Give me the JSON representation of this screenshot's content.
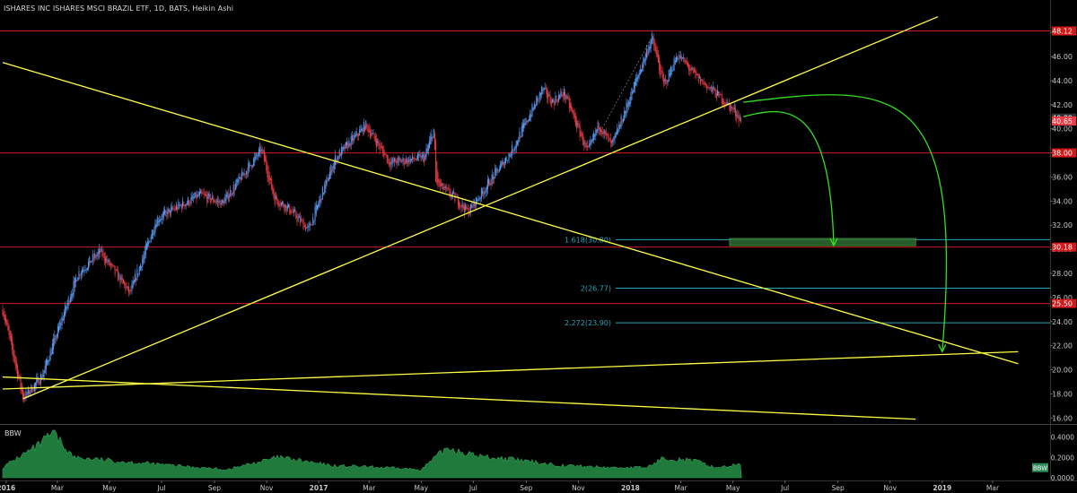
{
  "header": {
    "title": "ISHARES INC ISHARES MSCI BRAZIL ETF, 1D, BATS, Heikin Ashi"
  },
  "indicator": {
    "name": "BBW",
    "badge": "BBW"
  },
  "colors": {
    "background": "#000000",
    "candle_up": "#5b9cf6",
    "candle_down": "#ef3b44",
    "trendline": "#ffff44",
    "horizontal_level": "#d11a1a",
    "fib_line": "#2aa6b8",
    "projection_arrow": "#33dd22",
    "target_zone": "#2e6b2e",
    "bbw_fill": "#1f7a3c"
  },
  "chart_data": [
    {
      "type": "candlestick",
      "style": "Heikin Ashi",
      "x_axis": {
        "ticks": [
          "2016",
          "Mar",
          "May",
          "Jul",
          "Sep",
          "Nov",
          "2017",
          "Mar",
          "May",
          "Jul",
          "Sep",
          "Nov",
          "2018",
          "Mar",
          "May",
          "Jul",
          "Sep",
          "Nov",
          "2019",
          "Mar"
        ]
      },
      "y_axis": {
        "ticks": [
          "48.00",
          "46.00",
          "44.00",
          "42.00",
          "40.00",
          "38.00",
          "36.00",
          "34.00",
          "32.00",
          "30.00",
          "28.00",
          "26.00",
          "24.00",
          "22.00",
          "20.00",
          "18.00",
          "16.00"
        ],
        "range": [
          15.5,
          49.5
        ],
        "price_labels": [
          {
            "text": "48.12",
            "value": 48.12,
            "color": "#d11a1a"
          },
          {
            "text": "40.89",
            "value": 40.89,
            "color": "#333333"
          },
          {
            "text": "40.65",
            "value": 40.65,
            "color": "#ef3b44"
          },
          {
            "text": "38.00",
            "value": 38.0,
            "color": "#d11a1a"
          },
          {
            "text": "30.18",
            "value": 30.18,
            "color": "#d11a1a"
          },
          {
            "text": "25.50",
            "value": 25.5,
            "color": "#d11a1a"
          }
        ]
      },
      "price_path": [
        {
          "date": "2015-12-28",
          "price": 25.0
        },
        {
          "date": "2016-01-21",
          "price": 17.6
        },
        {
          "date": "2016-02-12",
          "price": 19.5
        },
        {
          "date": "2016-03-10",
          "price": 25.0
        },
        {
          "date": "2016-03-25",
          "price": 28.0
        },
        {
          "date": "2016-04-20",
          "price": 29.8
        },
        {
          "date": "2016-05-25",
          "price": 26.3
        },
        {
          "date": "2016-06-25",
          "price": 32.5
        },
        {
          "date": "2016-07-20",
          "price": 33.5
        },
        {
          "date": "2016-08-15",
          "price": 34.5
        },
        {
          "date": "2016-09-10",
          "price": 33.8
        },
        {
          "date": "2016-10-26",
          "price": 38.3
        },
        {
          "date": "2016-11-10",
          "price": 34.2
        },
        {
          "date": "2016-11-25",
          "price": 33.5
        },
        {
          "date": "2016-12-20",
          "price": 31.6
        },
        {
          "date": "2017-01-20",
          "price": 37.5
        },
        {
          "date": "2017-02-25",
          "price": 40.3
        },
        {
          "date": "2017-03-25",
          "price": 37.2
        },
        {
          "date": "2017-05-05",
          "price": 37.6
        },
        {
          "date": "2017-05-16",
          "price": 40.0
        },
        {
          "date": "2017-05-18",
          "price": 35.5
        },
        {
          "date": "2017-06-10",
          "price": 34.2
        },
        {
          "date": "2017-06-25",
          "price": 33.1
        },
        {
          "date": "2017-08-15",
          "price": 38.2
        },
        {
          "date": "2017-09-20",
          "price": 43.3
        },
        {
          "date": "2017-10-01",
          "price": 42.2
        },
        {
          "date": "2017-10-15",
          "price": 43.0
        },
        {
          "date": "2017-11-12",
          "price": 38.0
        },
        {
          "date": "2017-11-25",
          "price": 40.4
        },
        {
          "date": "2017-12-10",
          "price": 38.5
        },
        {
          "date": "2018-01-26",
          "price": 47.6
        },
        {
          "date": "2018-02-09",
          "price": 43.5
        },
        {
          "date": "2018-02-25",
          "price": 46.2
        },
        {
          "date": "2018-03-20",
          "price": 44.2
        },
        {
          "date": "2018-04-10",
          "price": 43.0
        },
        {
          "date": "2018-05-02",
          "price": 41.5
        },
        {
          "date": "2018-05-11",
          "price": 40.65
        }
      ],
      "horizontal_levels": [
        48.12,
        38.0,
        30.18,
        25.5
      ],
      "fibonacci_levels": [
        {
          "label": "1.618(30.80)",
          "value": 30.8
        },
        {
          "label": "2(26.77)",
          "value": 26.77
        },
        {
          "label": "2.272(23.90)",
          "value": 23.9
        }
      ],
      "trendlines": [
        {
          "from": {
            "date": "2015-12-28",
            "price": 45.5
          },
          "to": {
            "date": "2019-03-31",
            "price": 20.5
          }
        },
        {
          "from": {
            "date": "2016-01-21",
            "price": 17.6
          },
          "to": {
            "date": "2018-12-27",
            "price": 49.3
          }
        },
        {
          "from": {
            "date": "2015-12-28",
            "price": 18.4
          },
          "to": {
            "date": "2019-03-31",
            "price": 21.5
          }
        },
        {
          "from": {
            "date": "2015-12-28",
            "price": 19.4
          },
          "to": {
            "date": "2018-12-01",
            "price": 15.9
          }
        }
      ],
      "target_zone": {
        "from_date": "2018-04-27",
        "to_date": "2018-12-01",
        "price_low": 30.3,
        "price_high": 30.9
      },
      "projection_arrows": [
        {
          "from_price": 41.0,
          "target_date": "2018-08-27",
          "target_price": 30.3
        },
        {
          "from_price": 42.2,
          "target_date": "2019-01-01",
          "target_price": 21.5
        }
      ]
    },
    {
      "type": "area",
      "name": "BBW",
      "y_axis": {
        "ticks": [
          "0.4000",
          "0.2000",
          "0.0000"
        ],
        "range": [
          0,
          0.45
        ]
      },
      "series": [
        {
          "date": "2015-12-28",
          "value": 0.1
        },
        {
          "date": "2016-01-15",
          "value": 0.2
        },
        {
          "date": "2016-02-05",
          "value": 0.3
        },
        {
          "date": "2016-02-25",
          "value": 0.44
        },
        {
          "date": "2016-03-20",
          "value": 0.2
        },
        {
          "date": "2016-05-15",
          "value": 0.16
        },
        {
          "date": "2016-07-15",
          "value": 0.12
        },
        {
          "date": "2016-09-15",
          "value": 0.08
        },
        {
          "date": "2016-11-15",
          "value": 0.2
        },
        {
          "date": "2017-01-15",
          "value": 0.12
        },
        {
          "date": "2017-03-15",
          "value": 0.1
        },
        {
          "date": "2017-05-01",
          "value": 0.08
        },
        {
          "date": "2017-06-01",
          "value": 0.3
        },
        {
          "date": "2017-07-01",
          "value": 0.22
        },
        {
          "date": "2017-08-15",
          "value": 0.18
        },
        {
          "date": "2017-10-15",
          "value": 0.12
        },
        {
          "date": "2017-12-10",
          "value": 0.1
        },
        {
          "date": "2018-01-20",
          "value": 0.1
        },
        {
          "date": "2018-02-10",
          "value": 0.2
        },
        {
          "date": "2018-03-20",
          "value": 0.16
        },
        {
          "date": "2018-04-10",
          "value": 0.1
        },
        {
          "date": "2018-05-11",
          "value": 0.13
        }
      ]
    }
  ]
}
